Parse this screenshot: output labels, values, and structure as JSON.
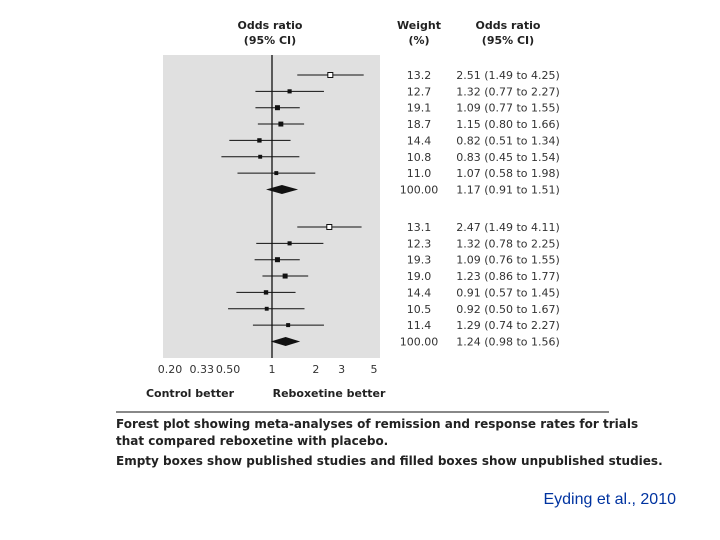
{
  "chart_data": {
    "type": "forest",
    "x_scale": "log",
    "xlim": [
      0.2,
      5
    ],
    "reference_line": 1,
    "header": {
      "left_title": "Odds ratio",
      "left_sub": "(95% CI)",
      "weight_title": "Weight",
      "weight_sub": "(%)",
      "right_title": "Odds ratio",
      "right_sub": "(95% CI)"
    },
    "x_ticks": [
      {
        "value": 0.2,
        "label": "0.20"
      },
      {
        "value": 0.33,
        "label": "0.33"
      },
      {
        "value": 0.5,
        "label": "0.50"
      },
      {
        "value": 1,
        "label": "1"
      },
      {
        "value": 2,
        "label": "2"
      },
      {
        "value": 3,
        "label": "3"
      },
      {
        "value": 5,
        "label": "5"
      }
    ],
    "favours_left": "Control better",
    "favours_right": "Reboxetine better",
    "groups": [
      {
        "rows": [
          {
            "or": 2.51,
            "lo": 1.49,
            "hi": 4.25,
            "weight": "13.2",
            "text": "2.51 (1.49 to 4.25)",
            "published": true
          },
          {
            "or": 1.32,
            "lo": 0.77,
            "hi": 2.27,
            "weight": "12.7",
            "text": "1.32 (0.77 to 2.27)",
            "published": false
          },
          {
            "or": 1.09,
            "lo": 0.77,
            "hi": 1.55,
            "weight": "19.1",
            "text": "1.09 (0.77 to 1.55)",
            "published": false
          },
          {
            "or": 1.15,
            "lo": 0.8,
            "hi": 1.66,
            "weight": "18.7",
            "text": "1.15 (0.80 to 1.66)",
            "published": false
          },
          {
            "or": 0.82,
            "lo": 0.51,
            "hi": 1.34,
            "weight": "14.4",
            "text": "0.82 (0.51 to 1.34)",
            "published": false
          },
          {
            "or": 0.83,
            "lo": 0.45,
            "hi": 1.54,
            "weight": "10.8",
            "text": "0.83 (0.45 to 1.54)",
            "published": false
          },
          {
            "or": 1.07,
            "lo": 0.58,
            "hi": 1.98,
            "weight": "11.0",
            "text": "1.07 (0.58 to 1.98)",
            "published": false
          }
        ],
        "pooled": {
          "or": 1.17,
          "lo": 0.91,
          "hi": 1.51,
          "weight": "100.00",
          "text": "1.17 (0.91 to 1.51)"
        }
      },
      {
        "rows": [
          {
            "or": 2.47,
            "lo": 1.49,
            "hi": 4.11,
            "weight": "13.1",
            "text": "2.47 (1.49 to 4.11)",
            "published": true
          },
          {
            "or": 1.32,
            "lo": 0.78,
            "hi": 2.25,
            "weight": "12.3",
            "text": "1.32 (0.78 to 2.25)",
            "published": false
          },
          {
            "or": 1.09,
            "lo": 0.76,
            "hi": 1.55,
            "weight": "19.3",
            "text": "1.09 (0.76 to 1.55)",
            "published": false
          },
          {
            "or": 1.23,
            "lo": 0.86,
            "hi": 1.77,
            "weight": "19.0",
            "text": "1.23 (0.86 to 1.77)",
            "published": false
          },
          {
            "or": 0.91,
            "lo": 0.57,
            "hi": 1.45,
            "weight": "14.4",
            "text": "0.91 (0.57 to 1.45)",
            "published": false
          },
          {
            "or": 0.92,
            "lo": 0.5,
            "hi": 1.67,
            "weight": "10.5",
            "text": "0.92 (0.50 to 1.67)",
            "published": false
          },
          {
            "or": 1.29,
            "lo": 0.74,
            "hi": 2.27,
            "weight": "11.4",
            "text": "1.29 (0.74 to 2.27)",
            "published": false
          }
        ],
        "pooled": {
          "or": 1.24,
          "lo": 0.98,
          "hi": 1.56,
          "weight": "100.00",
          "text": "1.24 (0.98 to 1.56)"
        }
      }
    ],
    "caption_lines": [
      "Forest plot showing meta-analyses of remission and response rates  for trials",
      "that compared reboxetine with placebo.",
      "Empty boxes show published studies and filled boxes show unpublished studies."
    ]
  },
  "citation": "Eyding et al., 2010",
  "colors": {
    "panel": "#e0e0e0",
    "ink": "#111111",
    "text": "#333333",
    "citation": "#0033a0"
  }
}
